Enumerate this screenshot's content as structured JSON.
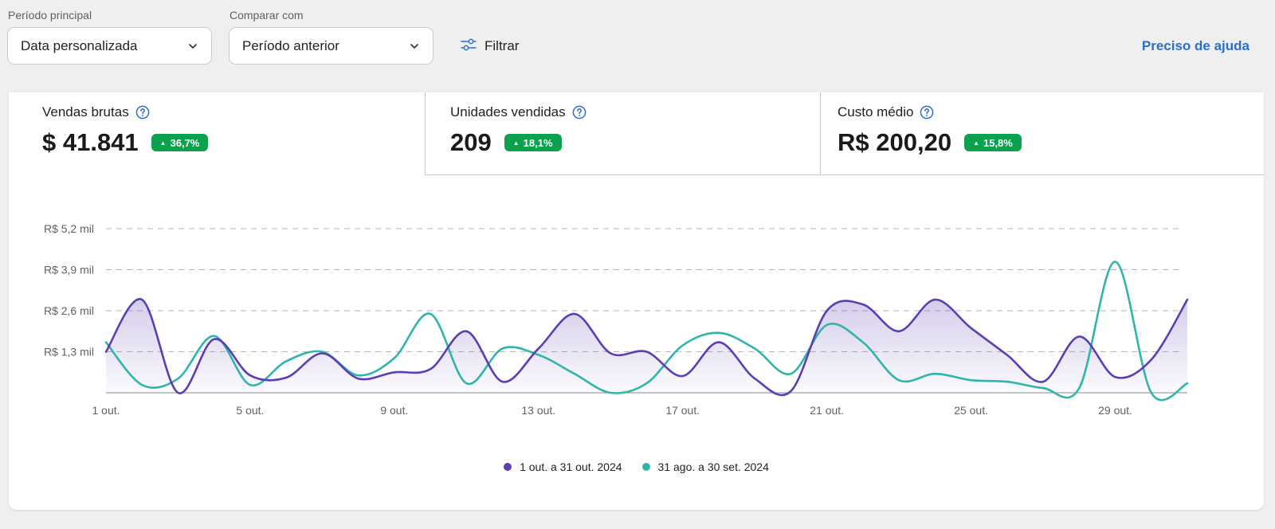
{
  "filters": {
    "main_period_label": "Período principal",
    "main_period_value": "Data personalizada",
    "compare_label": "Comparar com",
    "compare_value": "Período anterior",
    "filter_label": "Filtrar",
    "help_label": "Preciso de ajuda"
  },
  "metrics": [
    {
      "title": "Vendas brutas",
      "value": "$ 41.841",
      "change": "36,7%",
      "selected": true
    },
    {
      "title": "Unidades vendidas",
      "value": "209",
      "change": "18,1%",
      "selected": false
    },
    {
      "title": "Custo médio",
      "value": "R$ 200,20",
      "change": "15,8%",
      "selected": false
    }
  ],
  "colors": {
    "accent": "#2c6ecb",
    "badge_green": "#0ca14d",
    "series_current": "#5c3eb2",
    "series_previous": "#2fb5aa"
  },
  "icons": {
    "dropdown": "chevron-down-icon",
    "filter": "sliders-icon",
    "help": "question-circle-icon",
    "trend": "triangle-up-icon"
  },
  "chart_data": {
    "type": "line",
    "x": [
      1,
      2,
      3,
      4,
      5,
      6,
      7,
      8,
      9,
      10,
      11,
      12,
      13,
      14,
      15,
      16,
      17,
      18,
      19,
      20,
      21,
      22,
      23,
      24,
      25,
      26,
      27,
      28,
      29,
      30,
      31
    ],
    "x_ticks": [
      1,
      5,
      9,
      13,
      17,
      21,
      25,
      29
    ],
    "x_tick_labels": [
      "1 out.",
      "5 out.",
      "9 out.",
      "13 out.",
      "17 out.",
      "21 out.",
      "25 out.",
      "29 out."
    ],
    "y_ticks": [
      1300,
      2600,
      3900,
      5200
    ],
    "y_tick_labels": [
      "R$ 1,3 mil",
      "R$ 2,6 mil",
      "R$ 3,9 mil",
      "R$ 5,2 mil"
    ],
    "ylim": [
      0,
      5200
    ],
    "grid": "horizontal dashed",
    "legend_position": "bottom-center",
    "series": [
      {
        "name": "1 out. a 31 out. 2024",
        "area": true,
        "values": [
          1300,
          2950,
          0,
          1700,
          550,
          480,
          1250,
          450,
          650,
          750,
          1950,
          350,
          1400,
          2500,
          1250,
          1300,
          530,
          1600,
          450,
          50,
          2600,
          2800,
          1950,
          2950,
          2050,
          1200,
          350,
          1780,
          500,
          1050,
          2950
        ]
      },
      {
        "name": "31 ago. a 30 set. 2024",
        "area": false,
        "values": [
          1600,
          250,
          450,
          1800,
          250,
          1000,
          1300,
          550,
          1100,
          2500,
          300,
          1400,
          1200,
          600,
          0,
          300,
          1500,
          1900,
          1400,
          600,
          2150,
          1600,
          400,
          600,
          400,
          350,
          150,
          150,
          4150,
          0,
          300
        ]
      }
    ]
  }
}
